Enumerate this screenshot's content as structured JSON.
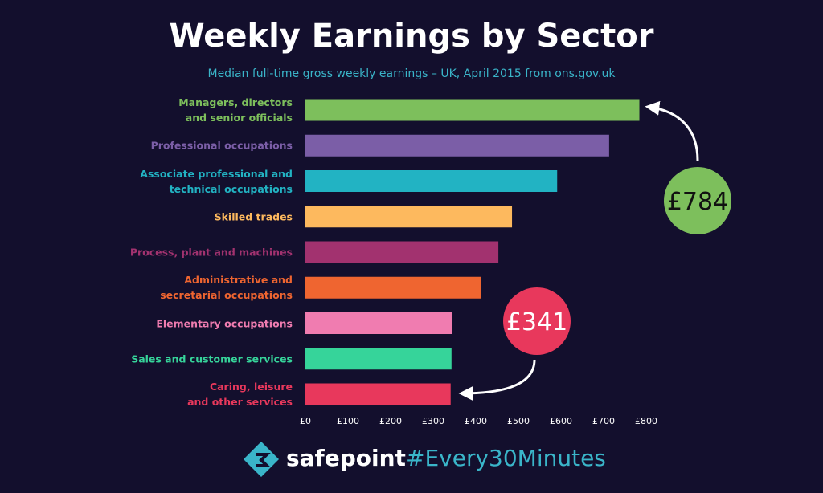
{
  "chart_data": {
    "type": "hbar",
    "title": "Weekly Earnings by Sector",
    "subtitle": "Median full-time gross weekly earnings – UK, April 2015 from ons.gov.uk",
    "categories": [
      "Managers, directors\nand senior officials",
      "Professional occupations",
      "Associate professional and\ntechnical occupations",
      "Skilled  trades",
      "Process, plant and machines",
      "Administrative and\nsecretarial occupations",
      "Elementary occupations",
      "Sales and customer services",
      "Caring, leisure\nand other services"
    ],
    "values": [
      784,
      713,
      591,
      485,
      453,
      413,
      345,
      343,
      341
    ],
    "value_labels": [
      "£784",
      null,
      null,
      null,
      null,
      null,
      null,
      null,
      "£341"
    ],
    "colors": [
      "#7dbf5c",
      "#7b5ea7",
      "#22b3c3",
      "#fdb95e",
      "#a2326f",
      "#ef6530",
      "#f07cb0",
      "#36d49a",
      "#e8385c"
    ],
    "xlim": [
      0,
      800
    ],
    "xticks": [
      {
        "value": 0,
        "label": "£0"
      },
      {
        "value": 100,
        "label": "£100"
      },
      {
        "value": 200,
        "label": "£200"
      },
      {
        "value": 300,
        "label": "£300"
      },
      {
        "value": 400,
        "label": "£400"
      },
      {
        "value": 500,
        "label": "£500"
      },
      {
        "value": 600,
        "label": "£600"
      },
      {
        "value": 700,
        "label": "£700"
      },
      {
        "value": 800,
        "label": "£800"
      }
    ],
    "grid": false
  },
  "footer": {
    "brand": "safepoint",
    "hashtag": "#Every30Minutes"
  }
}
